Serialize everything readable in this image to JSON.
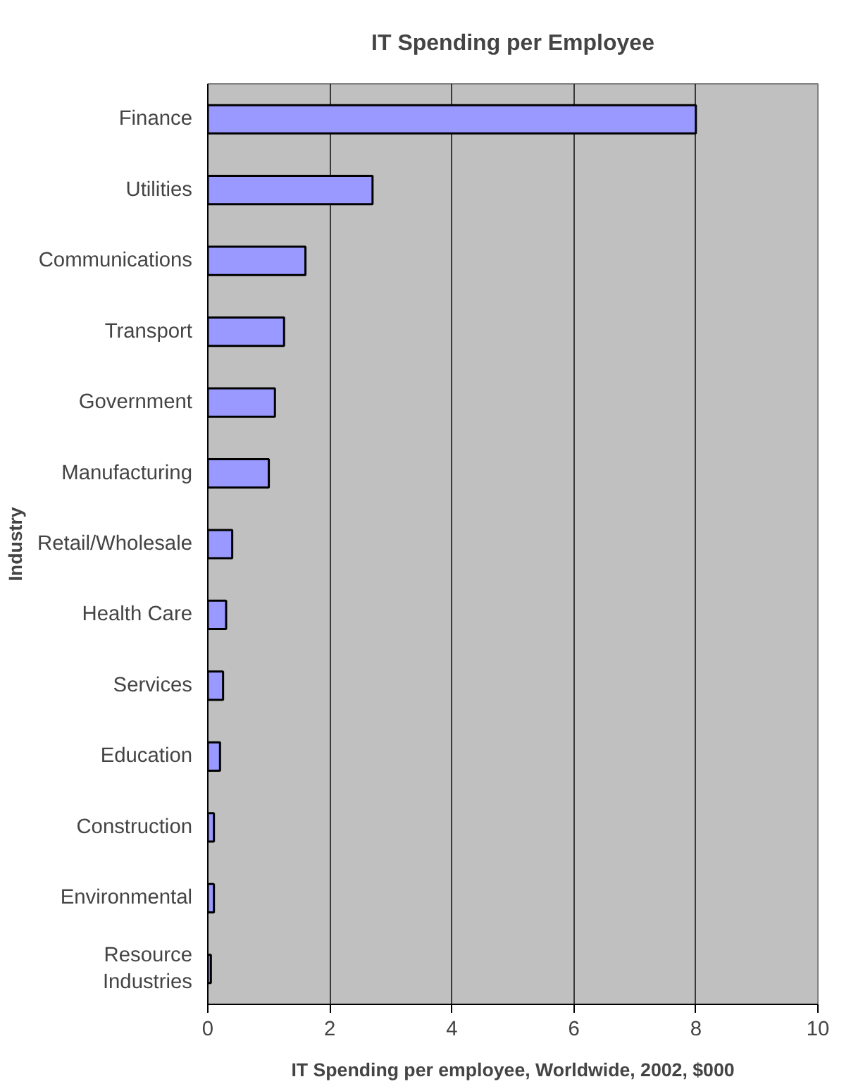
{
  "chart_data": {
    "type": "bar",
    "orientation": "horizontal",
    "title": "IT Spending per Employee",
    "xlabel": "IT Spending per employee, Worldwide, 2002, $000",
    "ylabel": "Industry",
    "categories": [
      "Finance",
      "Utilities",
      "Communications",
      "Transport",
      "Government",
      "Manufacturing",
      "Retail/Wholesale",
      "Health Care",
      "Services",
      "Education",
      "Construction",
      "Environmental",
      "Resource Industries"
    ],
    "values": [
      8.0,
      2.7,
      1.6,
      1.25,
      1.1,
      1.0,
      0.4,
      0.3,
      0.25,
      0.2,
      0.1,
      0.1,
      0.05
    ],
    "color": "#9999ff",
    "xlim": [
      0,
      10
    ],
    "xticks": [
      0,
      2,
      4,
      6,
      8,
      10
    ],
    "grid": "x"
  }
}
